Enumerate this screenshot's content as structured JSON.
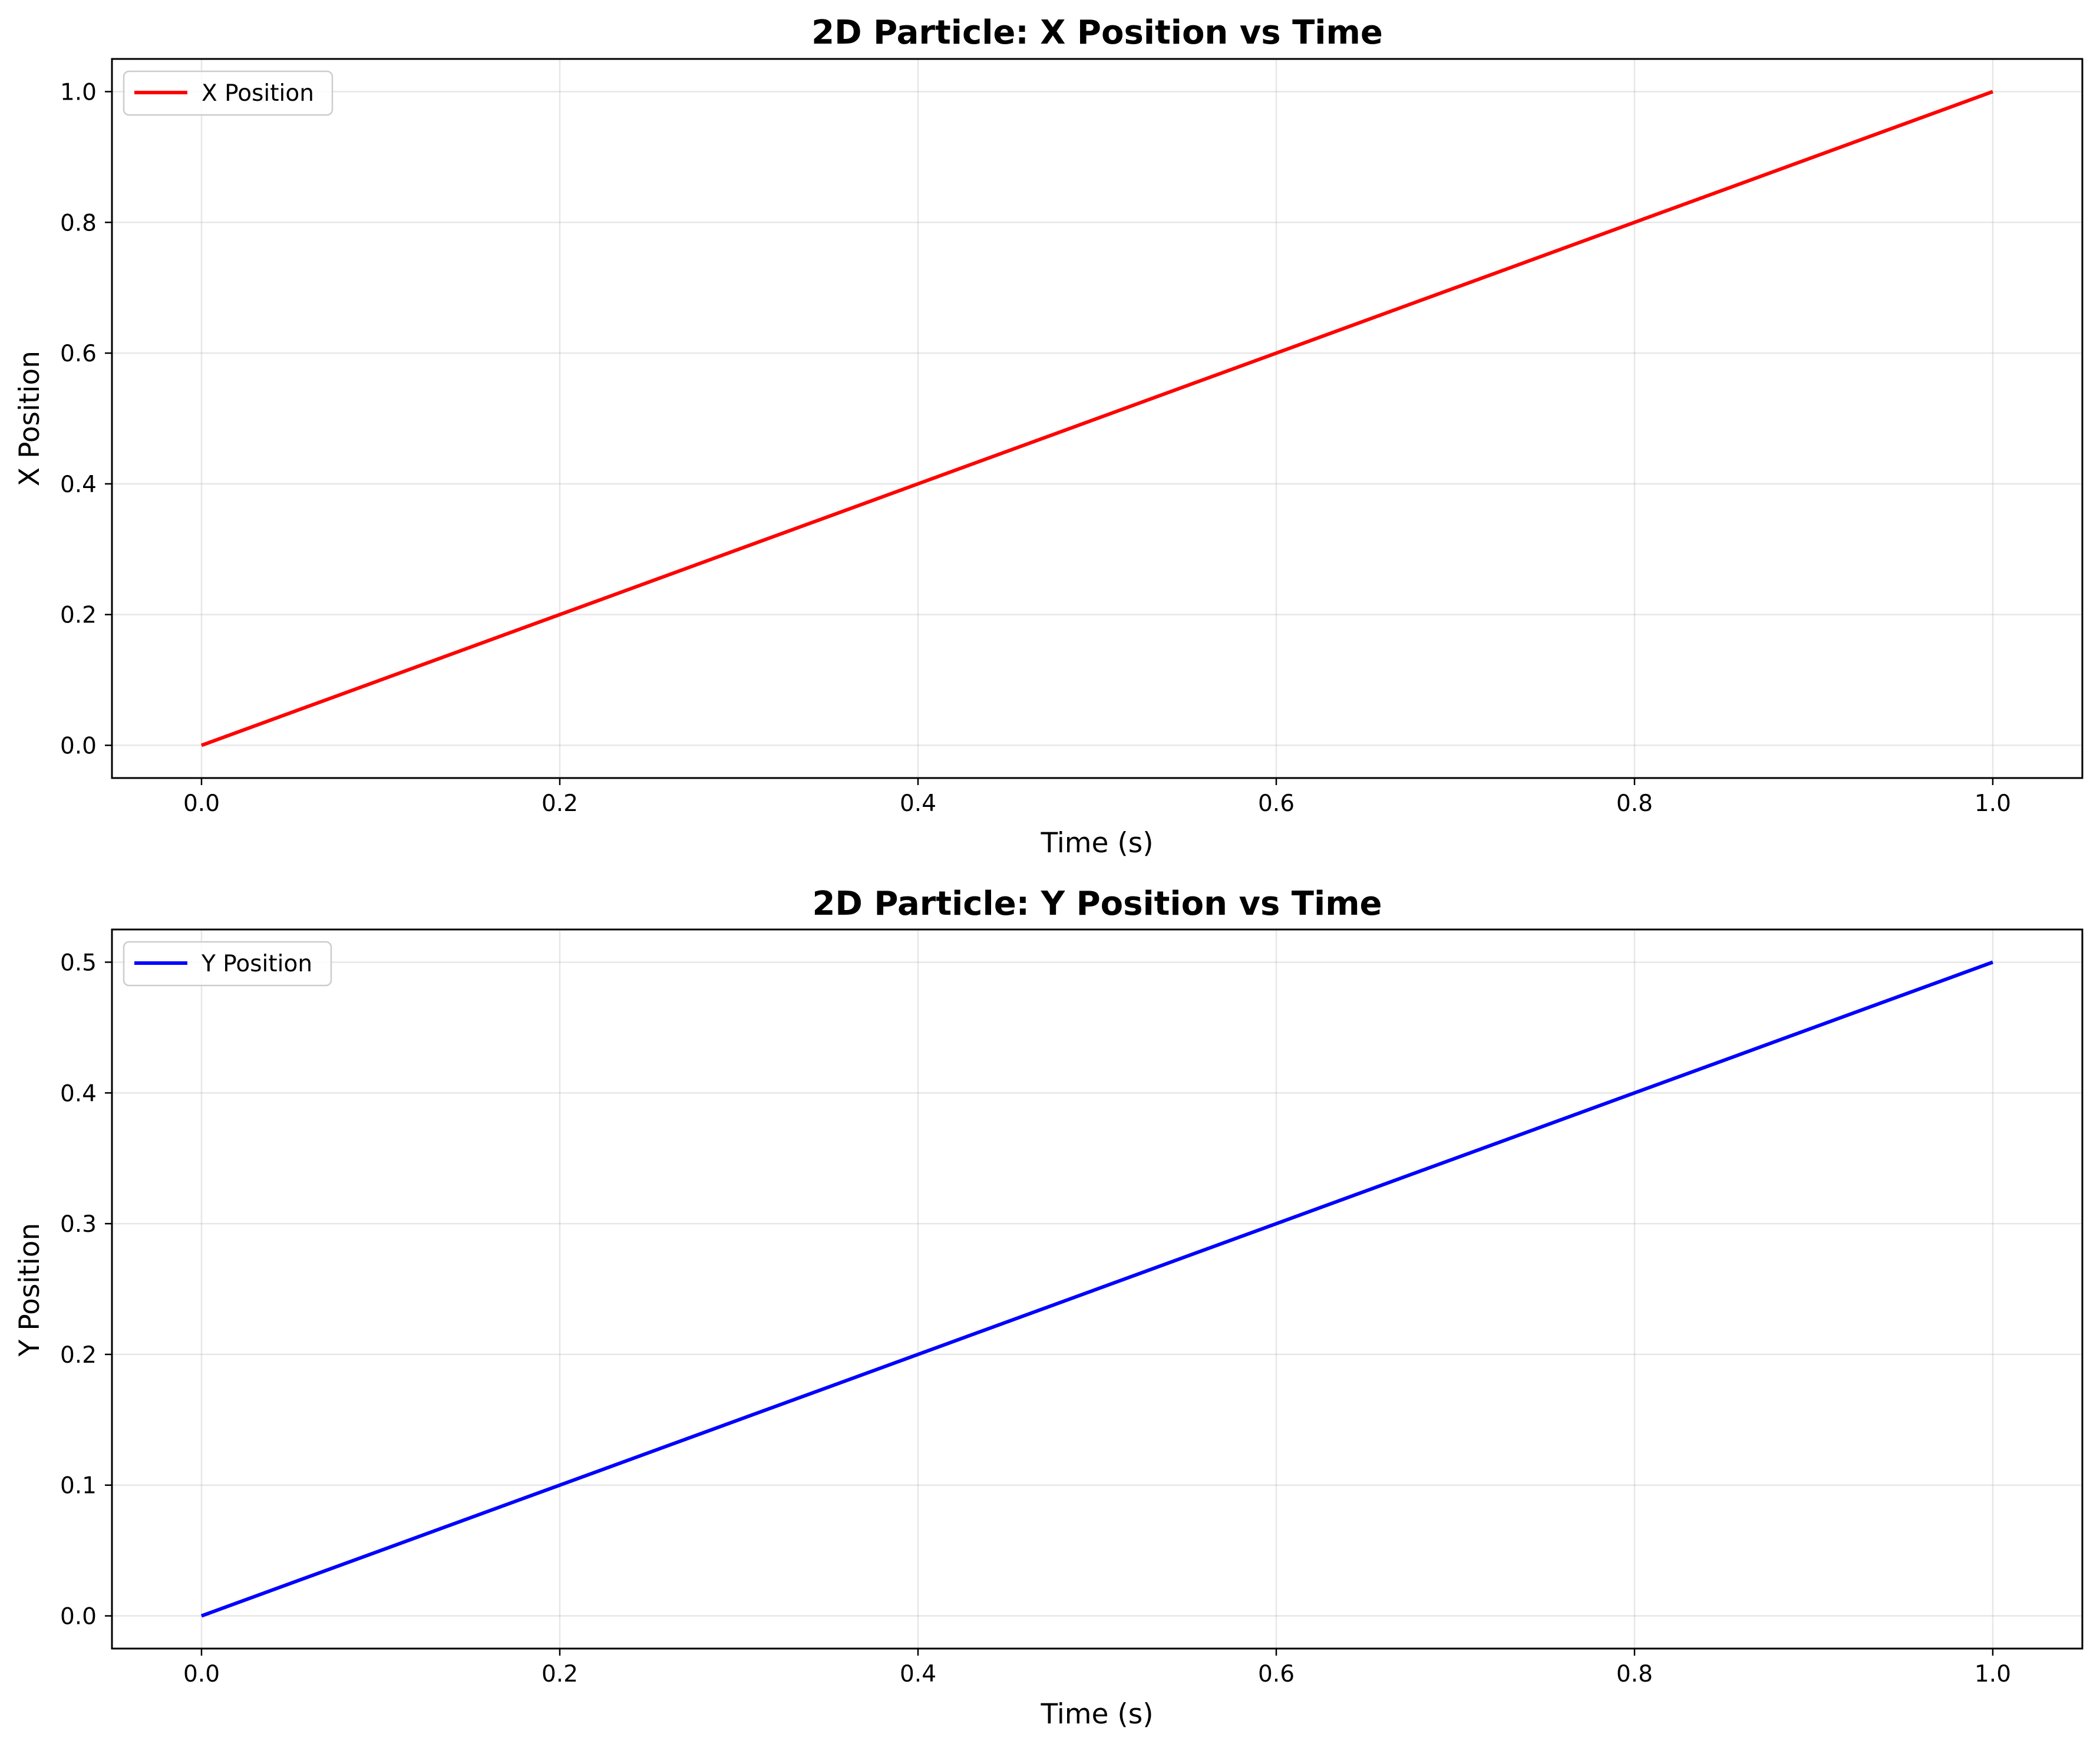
{
  "chart_data": [
    {
      "type": "line",
      "title": "2D Particle: X Position vs Time",
      "xlabel": "Time (s)",
      "ylabel": "X Position",
      "xlim": [
        -0.05,
        1.05
      ],
      "ylim": [
        -0.05,
        1.05
      ],
      "xticks": [
        0.0,
        0.2,
        0.4,
        0.6,
        0.8,
        1.0
      ],
      "xtick_labels": [
        "0.0",
        "0.2",
        "0.4",
        "0.6",
        "0.8",
        "1.0"
      ],
      "yticks": [
        0.0,
        0.2,
        0.4,
        0.6,
        0.8,
        1.0
      ],
      "ytick_labels": [
        "0.0",
        "0.2",
        "0.4",
        "0.6",
        "0.8",
        "1.0"
      ],
      "grid": true,
      "legend_position": "top-left",
      "series": [
        {
          "name": "X Position",
          "color": "#ff0000",
          "x": [
            0.0,
            1.0
          ],
          "y": [
            0.0,
            1.0
          ]
        }
      ]
    },
    {
      "type": "line",
      "title": "2D Particle: Y Position vs Time",
      "xlabel": "Time (s)",
      "ylabel": "Y Position",
      "xlim": [
        -0.05,
        1.05
      ],
      "ylim": [
        -0.025,
        0.525
      ],
      "xticks": [
        0.0,
        0.2,
        0.4,
        0.6,
        0.8,
        1.0
      ],
      "xtick_labels": [
        "0.0",
        "0.2",
        "0.4",
        "0.6",
        "0.8",
        "1.0"
      ],
      "yticks": [
        0.0,
        0.1,
        0.2,
        0.3,
        0.4,
        0.5
      ],
      "ytick_labels": [
        "0.0",
        "0.1",
        "0.2",
        "0.3",
        "0.4",
        "0.5"
      ],
      "grid": true,
      "legend_position": "top-left",
      "series": [
        {
          "name": "Y Position",
          "color": "#0000ff",
          "x": [
            0.0,
            1.0
          ],
          "y": [
            0.0,
            0.5
          ]
        }
      ]
    }
  ]
}
